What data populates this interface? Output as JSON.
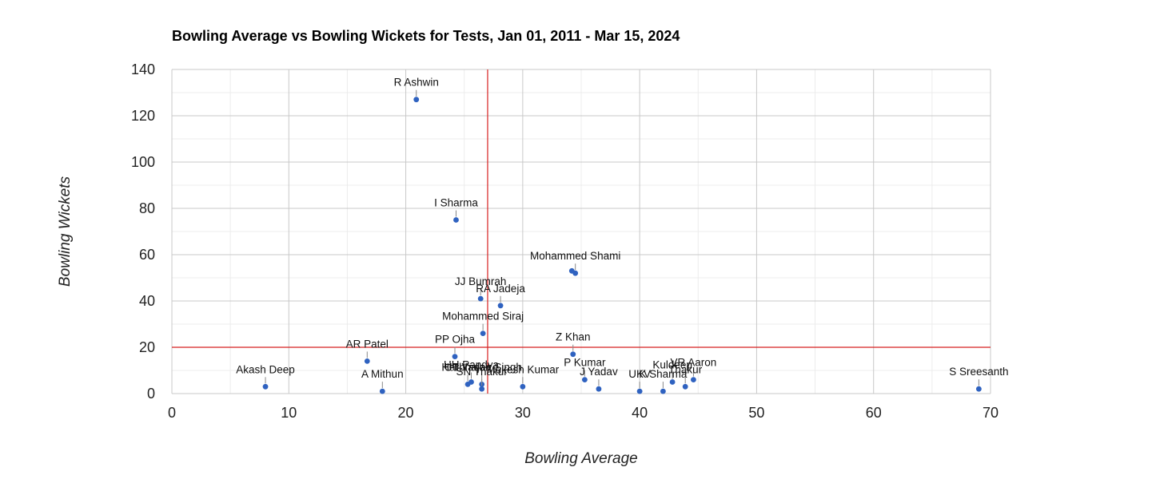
{
  "chart_data": {
    "type": "scatter",
    "title": "Bowling Average vs Bowling Wickets for Tests, Jan 01, 2011 - Mar 15, 2024",
    "xlabel": "Bowling Average",
    "ylabel": "Bowling Wickets",
    "xlim": [
      0,
      70
    ],
    "ylim": [
      0,
      140
    ],
    "x_ticks": [
      "0",
      "10",
      "20",
      "30",
      "40",
      "50",
      "60",
      "70"
    ],
    "y_ticks": [
      "0",
      "20",
      "40",
      "60",
      "80",
      "100",
      "120",
      "140"
    ],
    "grid": true,
    "reference_lines": {
      "x": 27,
      "y": 20,
      "color": "#d62020"
    },
    "point_color": "#2f62c0",
    "points": [
      {
        "label": "R Ashwin",
        "x": 20.9,
        "y": 127
      },
      {
        "label": "I Sharma",
        "x": 24.3,
        "y": 75
      },
      {
        "label": "Mohammed Shami",
        "x": 34.5,
        "y": 52
      },
      {
        "label": "",
        "x": 34.2,
        "y": 53
      },
      {
        "label": "JJ Bumrah",
        "x": 26.4,
        "y": 41
      },
      {
        "label": "RA Jadeja",
        "x": 28.1,
        "y": 38
      },
      {
        "label": "Mohammed Siraj",
        "x": 26.6,
        "y": 26
      },
      {
        "label": "Z Khan",
        "x": 34.3,
        "y": 17
      },
      {
        "label": "AR Patel",
        "x": 16.7,
        "y": 14
      },
      {
        "label": "PP Ojha",
        "x": 24.2,
        "y": 16
      },
      {
        "label": "HH Pandya",
        "x": 25.6,
        "y": 5
      },
      {
        "label": "Harbhajan Singh",
        "x": 26.5,
        "y": 4
      },
      {
        "label": "UT Yadav",
        "x": 25.3,
        "y": 4
      },
      {
        "label": "SN Thakur",
        "x": 26.5,
        "y": 2
      },
      {
        "label": "Mukesh Kumar",
        "x": 30.0,
        "y": 3
      },
      {
        "label": "P Kumar",
        "x": 35.3,
        "y": 6
      },
      {
        "label": "J Yadav",
        "x": 36.5,
        "y": 2
      },
      {
        "label": "UKV",
        "x": 40.0,
        "y": 1
      },
      {
        "label": "Kuldeep",
        "x": 42.8,
        "y": 5
      },
      {
        "label": "K Sharma",
        "x": 42.0,
        "y": 1
      },
      {
        "label": "VR Aaron",
        "x": 44.6,
        "y": 6
      },
      {
        "label": "Thakur",
        "x": 43.9,
        "y": 3
      },
      {
        "label": "Akash Deep",
        "x": 8.0,
        "y": 3
      },
      {
        "label": "A Mithun",
        "x": 18.0,
        "y": 1
      },
      {
        "label": "S Sreesanth",
        "x": 69.0,
        "y": 2
      }
    ]
  }
}
